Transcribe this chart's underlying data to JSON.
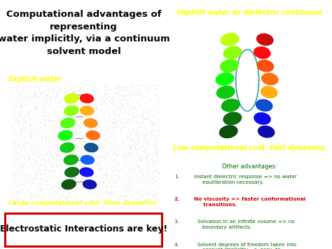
{
  "title_text": "Computational advantages of\nrepresenting\nwater implicitly, via a continuum\nsolvent model",
  "title_fontsize": 9.5,
  "title_color": "#000000",
  "title_bg": "#ffffff",
  "explicit_label": "Explicit water",
  "explicit_caption": "Large computational cost. Slow dynamics.",
  "explicit_label_color": "#ffff00",
  "explicit_caption_color": "#ffff00",
  "explicit_bg": "#000000",
  "implicit_label": "Implicit water as dielectric continuum",
  "implicit_caption": "Low computational cost. Fast dynamics.",
  "implicit_label_color": "#ffff00",
  "implicit_caption_color": "#ffff00",
  "implicit_bg": "#0000dd",
  "other_title": "Other advantages:",
  "other_title_color": "#006600",
  "other_bg": "#ffffff",
  "item_color_normal": "#006600",
  "item_color_bold": "#cc0000",
  "footer_text": "Electrostatic Interactions are key!",
  "footer_color": "#000000",
  "footer_bg": "#ffffff",
  "footer_border": "#cc0000",
  "fig_width": 4.74,
  "fig_height": 3.55,
  "dpi": 100
}
